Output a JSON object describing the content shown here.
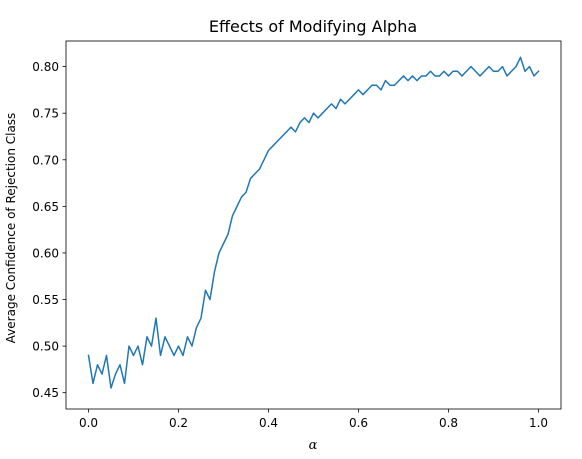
{
  "chart_data": {
    "type": "line",
    "title": "Effects of Modifying Alpha",
    "xlabel": "α",
    "ylabel": "Average Confidence of Rejection Class",
    "xlim": [
      -0.05,
      1.05
    ],
    "ylim": [
      0.4325,
      0.8275
    ],
    "xticks": [
      0.0,
      0.2,
      0.4,
      0.6,
      0.8,
      1.0
    ],
    "xtick_labels": [
      "0.0",
      "0.2",
      "0.4",
      "0.6",
      "0.8",
      "1.0"
    ],
    "yticks": [
      0.45,
      0.5,
      0.55,
      0.6,
      0.65,
      0.7,
      0.75,
      0.8
    ],
    "ytick_labels": [
      "0.45",
      "0.50",
      "0.55",
      "0.60",
      "0.65",
      "0.70",
      "0.75",
      "0.80"
    ],
    "grid": false,
    "series": [
      {
        "color": "#1f77b4",
        "x": [
          0.0,
          0.01,
          0.02,
          0.03,
          0.04,
          0.05,
          0.06,
          0.07,
          0.08,
          0.09,
          0.1,
          0.11,
          0.12,
          0.13,
          0.14,
          0.15,
          0.16,
          0.17,
          0.18,
          0.19,
          0.2,
          0.21,
          0.22,
          0.23,
          0.24,
          0.25,
          0.26,
          0.27,
          0.28,
          0.29,
          0.3,
          0.31,
          0.32,
          0.33,
          0.34,
          0.35,
          0.36,
          0.37,
          0.38,
          0.39,
          0.4,
          0.41,
          0.42,
          0.43,
          0.44,
          0.45,
          0.46,
          0.47,
          0.48,
          0.49,
          0.5,
          0.51,
          0.52,
          0.53,
          0.54,
          0.55,
          0.56,
          0.57,
          0.58,
          0.59,
          0.6,
          0.61,
          0.62,
          0.63,
          0.64,
          0.65,
          0.66,
          0.67,
          0.68,
          0.69,
          0.7,
          0.71,
          0.72,
          0.73,
          0.74,
          0.75,
          0.76,
          0.77,
          0.78,
          0.79,
          0.8,
          0.81,
          0.82,
          0.83,
          0.84,
          0.85,
          0.86,
          0.87,
          0.88,
          0.89,
          0.9,
          0.91,
          0.92,
          0.93,
          0.94,
          0.95,
          0.96,
          0.97,
          0.98,
          0.99,
          1.0
        ],
        "y": [
          0.49,
          0.46,
          0.48,
          0.47,
          0.49,
          0.455,
          0.47,
          0.48,
          0.46,
          0.5,
          0.49,
          0.5,
          0.48,
          0.51,
          0.5,
          0.53,
          0.49,
          0.51,
          0.5,
          0.49,
          0.5,
          0.49,
          0.51,
          0.5,
          0.52,
          0.53,
          0.56,
          0.55,
          0.58,
          0.6,
          0.61,
          0.62,
          0.64,
          0.65,
          0.66,
          0.665,
          0.68,
          0.685,
          0.69,
          0.7,
          0.71,
          0.715,
          0.72,
          0.725,
          0.73,
          0.735,
          0.73,
          0.74,
          0.745,
          0.74,
          0.75,
          0.745,
          0.75,
          0.755,
          0.76,
          0.755,
          0.765,
          0.76,
          0.765,
          0.77,
          0.775,
          0.77,
          0.775,
          0.78,
          0.78,
          0.775,
          0.785,
          0.78,
          0.78,
          0.785,
          0.79,
          0.785,
          0.79,
          0.785,
          0.79,
          0.79,
          0.795,
          0.79,
          0.79,
          0.795,
          0.79,
          0.795,
          0.795,
          0.79,
          0.795,
          0.8,
          0.795,
          0.79,
          0.795,
          0.8,
          0.795,
          0.795,
          0.8,
          0.79,
          0.795,
          0.8,
          0.81,
          0.795,
          0.8,
          0.79,
          0.795
        ]
      }
    ]
  }
}
